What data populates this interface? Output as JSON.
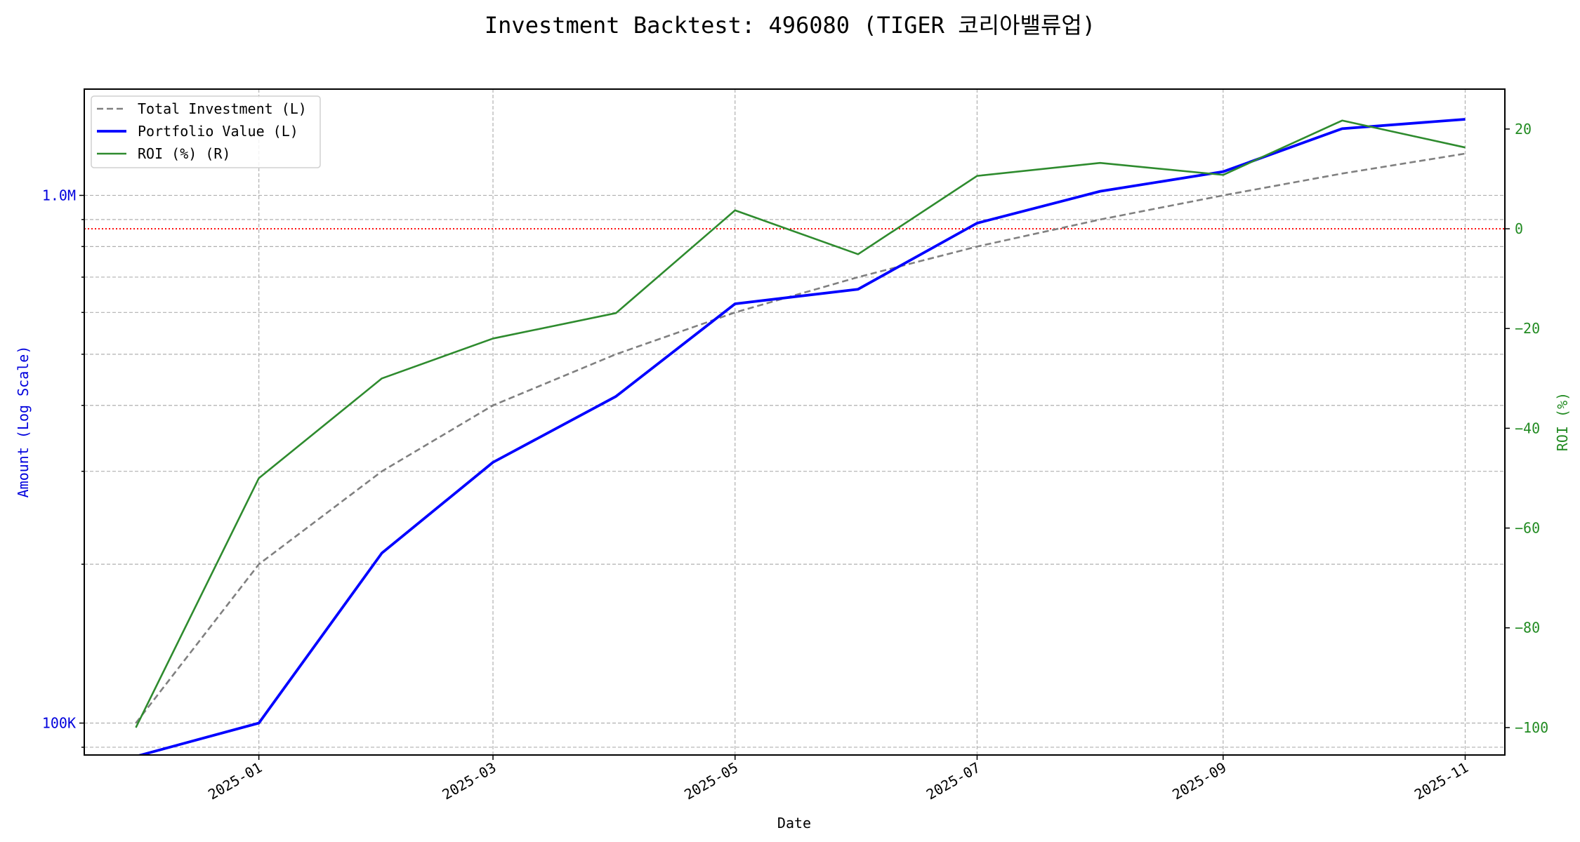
{
  "chart_data": {
    "type": "line",
    "title": "Investment Backtest: 496080 (TIGER 코리아밸류업)",
    "xlabel": "Date",
    "ylabel_left": "Amount (Log Scale)",
    "ylabel_right": "ROI (%)",
    "left_scale": "log",
    "left_ylim": [
      87000,
      1590000
    ],
    "right_ylim": [
      -105.5,
      28
    ],
    "xlim": [
      "2024-11-18",
      "2025-11-11"
    ],
    "grid": true,
    "legend_placement": "top-left",
    "x_ticks": [
      "2025-01",
      "2025-03",
      "2025-05",
      "2025-07",
      "2025-09",
      "2025-11"
    ],
    "left_ticks": [
      {
        "value": 100000,
        "label": "100K"
      },
      {
        "value": 1000000,
        "label": "1.0M"
      }
    ],
    "right_ticks": [
      20,
      0,
      -20,
      -40,
      -60,
      -80,
      -100
    ],
    "reference_line": {
      "axis": "right",
      "value": 0,
      "color": "#ff0000",
      "style": "dotted"
    },
    "x": [
      "2024-12-01",
      "2025-01-01",
      "2025-02-01",
      "2025-03-01",
      "2025-04-01",
      "2025-05-01",
      "2025-06-01",
      "2025-07-01",
      "2025-08-01",
      "2025-09-01",
      "2025-10-01",
      "2025-11-01"
    ],
    "series": [
      {
        "name": "Total Investment (L)",
        "axis": "left",
        "color": "#808080",
        "style": "dashed",
        "values": [
          100000,
          200000,
          300000,
          400000,
          500000,
          600000,
          700000,
          800000,
          900000,
          1000000,
          1100000,
          1200000
        ]
      },
      {
        "name": "Portfolio Value (L)",
        "axis": "left",
        "color": "#0000ff",
        "style": "solid",
        "values": [
          0,
          100000,
          210000,
          312000,
          416000,
          623000,
          664000,
          886000,
          1018000,
          1109000,
          1338000,
          1394000
        ]
      },
      {
        "name": "ROI (%) (R)",
        "axis": "right",
        "color": "#2e8b2e",
        "style": "solid",
        "values": [
          -100,
          -50,
          -30,
          -22,
          -16.9,
          3.7,
          -5.1,
          10.6,
          13.2,
          10.8,
          21.7,
          16.3
        ]
      }
    ],
    "label_colors": {
      "left": "#0000dd",
      "right": "#228b22"
    }
  }
}
